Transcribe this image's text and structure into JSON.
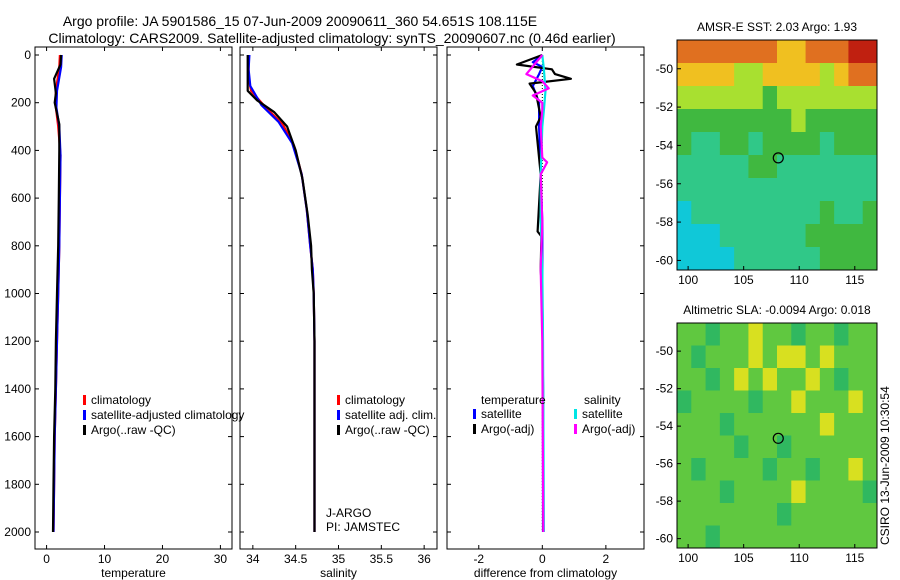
{
  "header": {
    "line1": "Argo profile: JA 5901586_15 07-Jun-2009 20090611_360 54.651S 108.115E",
    "line2": "Climatology: CARS2009. Satellite-adjusted climatology: synTS_20090607.nc (0.46d earlier)"
  },
  "stamp": "CSIRO 13-Jun-2009 10:30:54",
  "colors": {
    "climatology": "#ff0000",
    "satellite": "#0000ff",
    "argo": "#000000",
    "sat_sal": "#00e5e5",
    "argo_sal": "#ff00ff"
  },
  "chart_data": [
    {
      "type": "line",
      "id": "temperature",
      "xlabel": "temperature",
      "ylabel": "",
      "xlim": [
        -2,
        32
      ],
      "ylim": [
        2050,
        0
      ],
      "y_inverted": true,
      "xticks": [
        0,
        10,
        20,
        30
      ],
      "yticks": [
        0,
        200,
        400,
        600,
        800,
        1000,
        1200,
        1400,
        1600,
        1800,
        2000
      ],
      "legend": [
        "climatology",
        "satellite-adjusted climatology",
        "Argo(..raw -QC)"
      ],
      "series": [
        {
          "name": "climatology",
          "color": "#ff0000",
          "points": [
            [
              2.3,
              0
            ],
            [
              2.2,
              50
            ],
            [
              1.6,
              150
            ],
            [
              1.5,
              200
            ],
            [
              2.0,
              300
            ],
            [
              2.4,
              420
            ],
            [
              2.3,
              600
            ],
            [
              2.2,
              800
            ],
            [
              2.0,
              1000
            ],
            [
              1.8,
              1200
            ],
            [
              1.6,
              1400
            ],
            [
              1.4,
              1600
            ],
            [
              1.3,
              1800
            ],
            [
              1.2,
              2000
            ]
          ]
        },
        {
          "name": "satellite-adjusted climatology",
          "color": "#0000ff",
          "points": [
            [
              2.6,
              0
            ],
            [
              2.5,
              50
            ],
            [
              1.8,
              150
            ],
            [
              1.7,
              220
            ],
            [
              2.2,
              300
            ],
            [
              2.4,
              420
            ],
            [
              2.3,
              600
            ],
            [
              2.2,
              800
            ],
            [
              2.0,
              1000
            ],
            [
              1.8,
              1200
            ],
            [
              1.6,
              1400
            ],
            [
              1.4,
              1600
            ],
            [
              1.3,
              1800
            ],
            [
              1.2,
              2000
            ]
          ]
        },
        {
          "name": "Argo(..raw -QC)",
          "color": "#000000",
          "points": [
            [
              2.5,
              0
            ],
            [
              2.4,
              40
            ],
            [
              1.3,
              100
            ],
            [
              1.6,
              160
            ],
            [
              1.4,
              200
            ],
            [
              2.2,
              290
            ],
            [
              2.2,
              400
            ],
            [
              2.1,
              600
            ],
            [
              2.0,
              800
            ],
            [
              1.8,
              1000
            ],
            [
              1.6,
              1200
            ],
            [
              1.5,
              1400
            ],
            [
              1.3,
              1600
            ],
            [
              1.2,
              1800
            ],
            [
              1.1,
              2000
            ]
          ]
        }
      ]
    },
    {
      "type": "line",
      "id": "salinity",
      "xlabel": "salinity",
      "ylabel": "",
      "xlim": [
        33.85,
        36.15
      ],
      "ylim": [
        2050,
        0
      ],
      "y_inverted": true,
      "xticks": [
        34,
        34.5,
        35,
        35.5,
        36
      ],
      "legend": [
        "climatology",
        "satellite adj. clim.",
        "Argo(..raw -QC)"
      ],
      "annotation": [
        "J-ARGO",
        "PI: JAMSTEC"
      ],
      "series": [
        {
          "name": "climatology",
          "color": "#ff0000",
          "points": [
            [
              33.95,
              0
            ],
            [
              33.95,
              100
            ],
            [
              33.98,
              150
            ],
            [
              34.15,
              220
            ],
            [
              34.35,
              290
            ],
            [
              34.48,
              380
            ],
            [
              34.57,
              500
            ],
            [
              34.63,
              650
            ],
            [
              34.67,
              800
            ],
            [
              34.7,
              900
            ],
            [
              34.71,
              1000
            ],
            [
              34.72,
              1200
            ],
            [
              34.72,
              1500
            ],
            [
              34.72,
              1800
            ],
            [
              34.72,
              2000
            ]
          ]
        },
        {
          "name": "satellite adj. clim.",
          "color": "#0000ff",
          "points": [
            [
              33.96,
              0
            ],
            [
              33.95,
              60
            ],
            [
              33.97,
              130
            ],
            [
              34.1,
              210
            ],
            [
              34.3,
              280
            ],
            [
              34.46,
              370
            ],
            [
              34.57,
              500
            ],
            [
              34.63,
              650
            ],
            [
              34.67,
              800
            ],
            [
              34.7,
              900
            ],
            [
              34.71,
              1000
            ],
            [
              34.72,
              1200
            ],
            [
              34.72,
              1500
            ],
            [
              34.72,
              1800
            ],
            [
              34.72,
              2000
            ]
          ]
        },
        {
          "name": "Argo(..raw -QC)",
          "color": "#000000",
          "points": [
            [
              33.94,
              0
            ],
            [
              33.94,
              150
            ],
            [
              34.05,
              190
            ],
            [
              34.25,
              240
            ],
            [
              34.4,
              300
            ],
            [
              34.5,
              400
            ],
            [
              34.58,
              520
            ],
            [
              34.64,
              670
            ],
            [
              34.68,
              800
            ],
            [
              34.69,
              900
            ],
            [
              34.71,
              1000
            ],
            [
              34.72,
              1200
            ],
            [
              34.72,
              1500
            ],
            [
              34.72,
              1800
            ],
            [
              34.72,
              2000
            ]
          ]
        }
      ]
    },
    {
      "type": "line",
      "id": "difference",
      "xlabel": "difference from climatology",
      "ylabel": "",
      "xlim": [
        -3,
        3.2
      ],
      "ylim": [
        2050,
        0
      ],
      "y_inverted": true,
      "xticks": [
        -2,
        0,
        2
      ],
      "legend_titles": [
        "temperature",
        "salinity"
      ],
      "legend": [
        "satellite",
        "Argo(-adj)",
        "satellite",
        "Argo(-adj)"
      ],
      "series": [
        {
          "name": "temperature satellite",
          "color": "#0000ff",
          "points": [
            [
              0.0,
              0
            ],
            [
              -0.3,
              30
            ],
            [
              0.0,
              50
            ],
            [
              -0.1,
              80
            ],
            [
              -0.3,
              130
            ],
            [
              -0.1,
              200
            ],
            [
              -0.1,
              300
            ],
            [
              -0.05,
              500
            ],
            [
              0.0,
              700
            ],
            [
              0.0,
              1000
            ],
            [
              0.02,
              1400
            ],
            [
              0.02,
              2000
            ]
          ]
        },
        {
          "name": "temperature Argo(-adj)",
          "color": "#000000",
          "points": [
            [
              0.0,
              0
            ],
            [
              -0.8,
              40
            ],
            [
              0.3,
              60
            ],
            [
              0.4,
              80
            ],
            [
              0.9,
              100
            ],
            [
              -0.4,
              120
            ],
            [
              -0.2,
              160
            ],
            [
              -0.05,
              260
            ],
            [
              -0.2,
              300
            ],
            [
              -0.05,
              500
            ],
            [
              -0.15,
              740
            ],
            [
              -0.03,
              760
            ],
            [
              -0.05,
              900
            ],
            [
              0.0,
              1000
            ],
            [
              0.02,
              1400
            ],
            [
              0.03,
              2000
            ]
          ]
        },
        {
          "name": "salinity satellite",
          "color": "#00e5e5",
          "points": [
            [
              0.0,
              0
            ],
            [
              0.05,
              60
            ],
            [
              0.1,
              150
            ],
            [
              0.05,
              230
            ],
            [
              0.0,
              300
            ],
            [
              -0.05,
              500
            ],
            [
              -0.05,
              700
            ],
            [
              0.0,
              900
            ],
            [
              0.02,
              1200
            ],
            [
              0.05,
              2000
            ]
          ]
        },
        {
          "name": "salinity Argo(-adj)",
          "color": "#ff00ff",
          "points": [
            [
              0.0,
              0
            ],
            [
              -0.5,
              80
            ],
            [
              0.0,
              110
            ],
            [
              0.2,
              140
            ],
            [
              -0.3,
              170
            ],
            [
              0.0,
              200
            ],
            [
              0.0,
              230
            ],
            [
              -0.05,
              300
            ],
            [
              0.0,
              430
            ],
            [
              0.15,
              450
            ],
            [
              -0.05,
              500
            ],
            [
              0.0,
              700
            ],
            [
              -0.05,
              900
            ],
            [
              0.0,
              1200
            ],
            [
              0.03,
              2000
            ]
          ]
        }
      ]
    },
    {
      "type": "heatmap",
      "id": "sst_map",
      "title": "AMSR-E SST: 2.03 Argo: 1.93",
      "xlim": [
        99,
        117
      ],
      "ylim": [
        -60.5,
        -48.5
      ],
      "xticks": [
        100,
        105,
        110,
        115
      ],
      "yticks": [
        -50,
        -52,
        -54,
        -56,
        -58,
        -60
      ],
      "marker": {
        "lon": 108.115,
        "lat": -54.651
      },
      "values": [
        [
          5,
          5,
          5,
          5,
          5,
          5,
          5,
          4,
          4,
          5,
          5,
          5,
          6,
          6
        ],
        [
          4,
          4,
          4,
          4,
          3,
          3,
          4,
          4,
          4,
          4,
          3,
          4,
          5,
          5
        ],
        [
          3,
          3,
          3,
          3,
          3,
          3,
          2,
          3,
          3,
          3,
          3,
          3,
          3,
          3
        ],
        [
          2,
          2,
          2,
          2,
          2,
          2,
          2,
          2,
          3,
          2,
          2,
          2,
          2,
          2
        ],
        [
          2,
          1,
          1,
          2,
          2,
          1,
          2,
          2,
          2,
          2,
          1,
          2,
          2,
          2
        ],
        [
          1,
          1,
          1,
          1,
          1,
          2,
          2,
          1,
          1,
          1,
          1,
          1,
          1,
          1
        ],
        [
          1,
          1,
          1,
          1,
          1,
          1,
          1,
          1,
          1,
          1,
          1,
          1,
          1,
          1
        ],
        [
          0,
          1,
          1,
          1,
          1,
          1,
          1,
          1,
          1,
          1,
          2,
          1,
          1,
          2
        ],
        [
          0,
          0,
          0,
          1,
          1,
          1,
          1,
          1,
          1,
          2,
          2,
          2,
          2,
          2
        ],
        [
          0,
          0,
          0,
          0,
          1,
          1,
          1,
          1,
          1,
          1,
          2,
          2,
          2,
          2
        ]
      ]
    },
    {
      "type": "heatmap",
      "id": "sla_map",
      "title": "Altimetric SLA: -0.0094 Argo: 0.018",
      "xlim": [
        99,
        117
      ],
      "ylim": [
        -60.5,
        -48.5
      ],
      "xticks": [
        100,
        105,
        110,
        115
      ],
      "yticks": [
        -50,
        -52,
        -54,
        -56,
        -58,
        -60
      ],
      "marker": {
        "lon": 108.115,
        "lat": -54.651
      },
      "values": [
        [
          2,
          2,
          1,
          2,
          2,
          3,
          2,
          2,
          1,
          2,
          2,
          1,
          2,
          2
        ],
        [
          2,
          1,
          2,
          2,
          2,
          3,
          2,
          3,
          3,
          2,
          3,
          2,
          2,
          2
        ],
        [
          2,
          2,
          1,
          2,
          3,
          2,
          3,
          2,
          2,
          3,
          2,
          1,
          2,
          2
        ],
        [
          1,
          2,
          2,
          2,
          2,
          1,
          2,
          2,
          3,
          2,
          2,
          2,
          3,
          2
        ],
        [
          2,
          2,
          2,
          1,
          2,
          2,
          2,
          2,
          2,
          2,
          3,
          2,
          2,
          2
        ],
        [
          2,
          2,
          2,
          2,
          1,
          2,
          2,
          1,
          2,
          2,
          2,
          2,
          2,
          2
        ],
        [
          2,
          1,
          2,
          2,
          2,
          2,
          1,
          2,
          2,
          1,
          2,
          2,
          3,
          2
        ],
        [
          2,
          2,
          2,
          1,
          2,
          2,
          2,
          2,
          3,
          2,
          2,
          2,
          2,
          1
        ],
        [
          2,
          2,
          2,
          2,
          2,
          2,
          2,
          1,
          2,
          2,
          2,
          2,
          2,
          2
        ],
        [
          2,
          2,
          1,
          2,
          2,
          2,
          2,
          2,
          2,
          2,
          2,
          2,
          2,
          2
        ]
      ]
    }
  ]
}
